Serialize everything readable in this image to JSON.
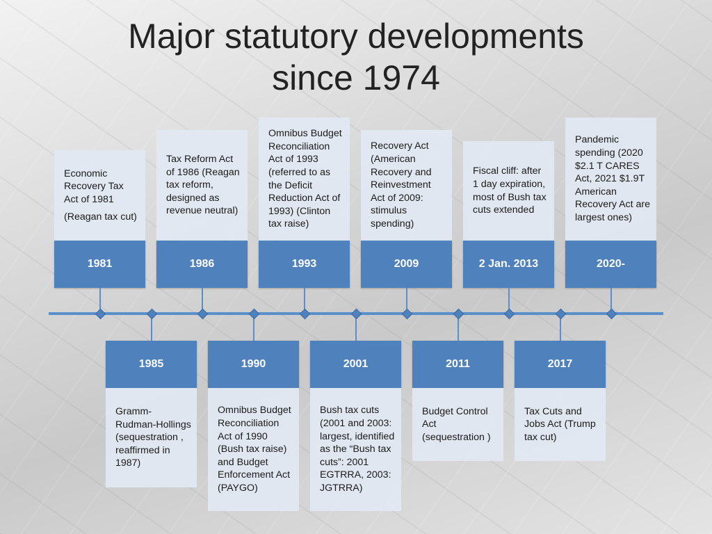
{
  "title": {
    "line1": "Major statutory developments",
    "line2": "since 1974"
  },
  "top_events": [
    {
      "year": "1981",
      "paragraphs": [
        "Economic Recovery Tax Act of 1981",
        "(Reagan tax cut)"
      ]
    },
    {
      "year": "1986",
      "paragraphs": [
        "Tax Reform Act of 1986 (Reagan tax reform, designed as revenue neutral)"
      ]
    },
    {
      "year": "1993",
      "paragraphs": [
        "Omnibus Budget Reconciliation Act of 1993 (referred to as the Deficit Reduction Act of 1993) (Clinton tax raise)"
      ]
    },
    {
      "year": "2009",
      "paragraphs": [
        "Recovery Act (American Recovery and Reinvestment Act of 2009: stimulus spending)"
      ]
    },
    {
      "year": "2 Jan. 2013",
      "paragraphs": [
        "Fiscal cliff: after 1 day expiration, most of Bush tax cuts extended"
      ]
    },
    {
      "year": "2020-",
      "paragraphs": [
        "Pandemic spending (2020 $2.1 T CARES Act, 2021 $1.9T American Recovery Act are largest ones)"
      ]
    }
  ],
  "bottom_events": [
    {
      "year": "1985",
      "paragraphs": [
        "Gramm-Rudman-Hollings (sequestration , reaffirmed in 1987)"
      ]
    },
    {
      "year": "1990",
      "paragraphs": [
        "Omnibus Budget Reconciliation Act of 1990 (Bush tax raise) and Budget Enforcement Act (PAYGO)"
      ]
    },
    {
      "year": "2001",
      "paragraphs": [
        "Bush tax cuts (2001 and 2003: largest, identified as the “Bush tax cuts”: 2001 EGTRRA, 2003: JGTRRA)"
      ]
    },
    {
      "year": "2011",
      "paragraphs": [
        "Budget Control Act (sequestration )"
      ]
    },
    {
      "year": "2017",
      "paragraphs": [
        "Tax Cuts and Jobs Act (Trump tax cut)"
      ]
    }
  ],
  "colors": {
    "year_box": "#4f81bd",
    "desc_box": "#e2e8f2",
    "axis": "#5b8fc9"
  }
}
